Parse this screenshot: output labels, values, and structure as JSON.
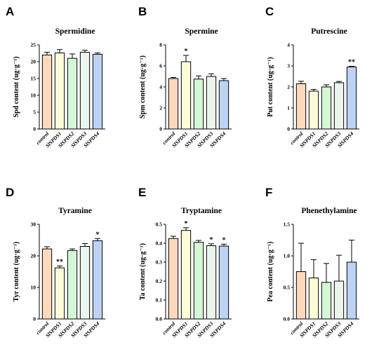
{
  "colors": {
    "control": "#fcd9bd",
    "SlSPDS1": "#fefbd8",
    "SlSPDS2": "#d4f7d6",
    "SlSPDS3": "#eaf5ec",
    "SlSPDS4": "#bcd3f6",
    "axis": "#000000"
  },
  "chart_data": [
    {
      "id": "A",
      "type": "bar",
      "title": "Spermidine",
      "ylabel": "Spd content (ug·g⁻¹)",
      "categories": [
        "control",
        "SlSPDS1",
        "SlSPDS2",
        "SlSPDS3",
        "SlSPDS4"
      ],
      "values": [
        22.0,
        22.6,
        21.0,
        22.8,
        22.2
      ],
      "errors": [
        0.8,
        1.0,
        1.3,
        0.6,
        0.4
      ],
      "significance": [
        "",
        "",
        "",
        "",
        ""
      ],
      "ylim": [
        0,
        25
      ],
      "yticks": [
        "0",
        "5",
        "10",
        "15",
        "20",
        "25"
      ]
    },
    {
      "id": "B",
      "type": "bar",
      "title": "Spermine",
      "ylabel": "Spm content (ug·g⁻¹)",
      "categories": [
        "control",
        "SlSPDS1",
        "SlSPDS2",
        "SlSPDS3",
        "SlSPDS4"
      ],
      "values": [
        4.8,
        6.4,
        4.75,
        5.0,
        4.6
      ],
      "errors": [
        0.1,
        0.6,
        0.3,
        0.25,
        0.2
      ],
      "significance": [
        "",
        "*",
        "",
        "",
        ""
      ],
      "ylim": [
        0,
        8
      ],
      "yticks": [
        "0",
        "2",
        "4",
        "6",
        "8"
      ]
    },
    {
      "id": "C",
      "type": "bar",
      "title": "Putrescine",
      "ylabel": "Put content (ug·g⁻¹)",
      "categories": [
        "control",
        "SlSPDS1",
        "SlSPDS2",
        "SlSPDS3",
        "SlSPDS4"
      ],
      "values": [
        2.15,
        1.8,
        2.0,
        2.2,
        2.95
      ],
      "errors": [
        0.12,
        0.08,
        0.1,
        0.06,
        0.03
      ],
      "significance": [
        "",
        "",
        "",
        "",
        "**"
      ],
      "ylim": [
        0,
        4
      ],
      "yticks": [
        "0",
        "1",
        "2",
        "3",
        "4"
      ]
    },
    {
      "id": "D",
      "type": "bar",
      "title": "Tyramine",
      "ylabel": "Tyr content (ug·g⁻¹)",
      "categories": [
        "control",
        "SlSPDS1",
        "SlSPDS2",
        "SlSPDS3",
        "SlSPDS4"
      ],
      "values": [
        22.2,
        16.2,
        21.7,
        23.0,
        24.8
      ],
      "errors": [
        0.7,
        0.6,
        0.5,
        0.9,
        0.7
      ],
      "significance": [
        "",
        "**",
        "",
        "",
        "*"
      ],
      "ylim": [
        0,
        30
      ],
      "yticks": [
        "0",
        "10",
        "20",
        "30"
      ]
    },
    {
      "id": "E",
      "type": "bar",
      "title": "Tryptamine",
      "ylabel": "Ta content (ug·g⁻¹)",
      "categories": [
        "control",
        "SlSPDS1",
        "SlSPDS2",
        "SlSPDS3",
        "SlSPDS4"
      ],
      "values": [
        0.425,
        0.468,
        0.405,
        0.387,
        0.385
      ],
      "errors": [
        0.012,
        0.014,
        0.01,
        0.01,
        0.01
      ],
      "significance": [
        "",
        "*",
        "",
        "*",
        "*"
      ],
      "ylim": [
        0,
        0.5
      ],
      "yticks": [
        "0.0",
        "0.1",
        "0.2",
        "0.3",
        "0.4",
        "0.5"
      ]
    },
    {
      "id": "F",
      "type": "bar",
      "title": "Phenethylamine",
      "ylabel": "Pea content (ug·g⁻¹)",
      "categories": [
        "control",
        "SlSPDS1",
        "SlSPDS2",
        "SlSPDS3",
        "SlSPDS4"
      ],
      "values": [
        0.75,
        0.65,
        0.58,
        0.6,
        0.9
      ],
      "errors": [
        0.45,
        0.29,
        0.3,
        0.41,
        0.35
      ],
      "significance": [
        "",
        "",
        "",
        "",
        ""
      ],
      "ylim": [
        0,
        1.5
      ],
      "yticks": [
        "0.0",
        "0.5",
        "1.0",
        "1.5"
      ]
    }
  ]
}
